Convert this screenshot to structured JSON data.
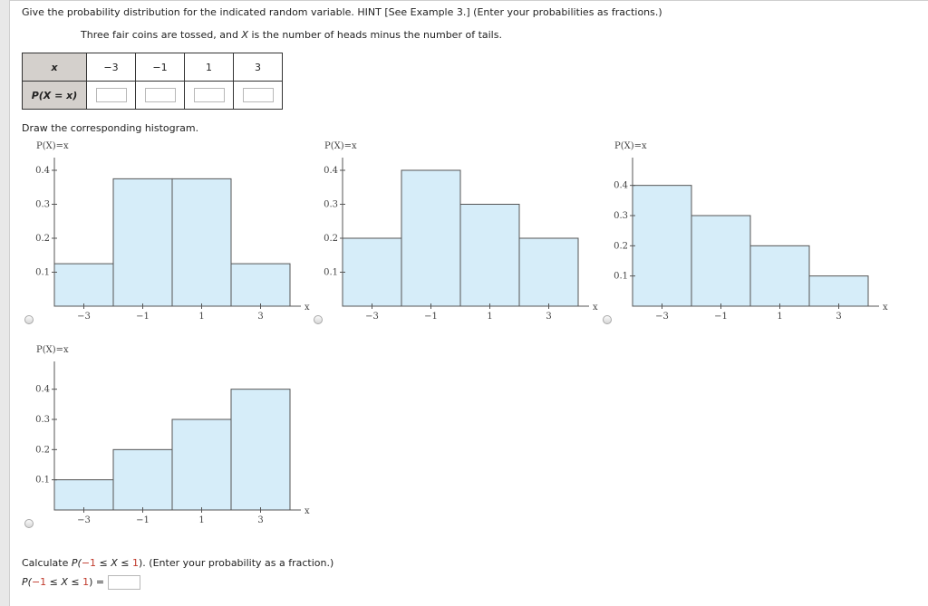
{
  "question": {
    "title": "Give the probability distribution for the indicated random variable. HINT [See Example 3.] (Enter your probabilities as fractions.)",
    "subtitle_pre": "Three fair coins are tossed, and ",
    "subtitle_var": "X",
    "subtitle_post": " is the number of heads minus the number of tails."
  },
  "table": {
    "x_header": "x",
    "p_header": "P(X = x)",
    "x_values": [
      "−3",
      "−1",
      "1",
      "3"
    ],
    "p_values": [
      "",
      "",
      "",
      ""
    ]
  },
  "draw_label": "Draw the corresponding histogram.",
  "chart_data": [
    {
      "type": "bar",
      "ylabel": "P(X)=x",
      "xlabel": "x",
      "categories": [
        "−3",
        "−1",
        "1",
        "3"
      ],
      "values": [
        0.125,
        0.375,
        0.375,
        0.125
      ],
      "yticks": [
        "0.1",
        "0.2",
        "0.3",
        "0.4"
      ],
      "ylim": [
        0,
        0.4
      ],
      "bar_color": "#d6edf9"
    },
    {
      "type": "bar",
      "ylabel": "P(X)=x",
      "xlabel": "x",
      "categories": [
        "−3",
        "−1",
        "1",
        "3"
      ],
      "values": [
        0.2,
        0.4,
        0.3,
        0.2
      ],
      "yticks": [
        "0.1",
        "0.2",
        "0.3",
        "0.4"
      ],
      "ylim": [
        0,
        0.4
      ],
      "bar_color": "#d6edf9"
    },
    {
      "type": "bar",
      "ylabel": "P(X)=x",
      "xlabel": "x",
      "categories": [
        "−3",
        "−1",
        "1",
        "3"
      ],
      "values": [
        0.4,
        0.3,
        0.2,
        0.1
      ],
      "yticks": [
        "0.1",
        "0.2",
        "0.3",
        "0.4"
      ],
      "ylim": [
        0,
        0.45
      ],
      "bar_color": "#d6edf9"
    },
    {
      "type": "bar",
      "ylabel": "P(X)=x",
      "xlabel": "x",
      "categories": [
        "−3",
        "−1",
        "1",
        "3"
      ],
      "values": [
        0.1,
        0.2,
        0.3,
        0.4
      ],
      "yticks": [
        "0.1",
        "0.2",
        "0.3",
        "0.4"
      ],
      "ylim": [
        0,
        0.45
      ],
      "bar_color": "#d6edf9"
    }
  ],
  "calc": {
    "label_pre": "Calculate ",
    "label_p": "P(",
    "label_a": "−1",
    "label_rel1": " ≤ ",
    "label_x": "X",
    "label_rel2": " ≤ ",
    "label_b": "1",
    "label_post": "). (Enter your probability as a fraction.)",
    "expr_pre": "P(",
    "expr_a": "−1",
    "expr_mid1": " ≤ ",
    "expr_x": "X",
    "expr_mid2": " ≤ ",
    "expr_b": "1",
    "expr_post": ") =",
    "answer": ""
  }
}
